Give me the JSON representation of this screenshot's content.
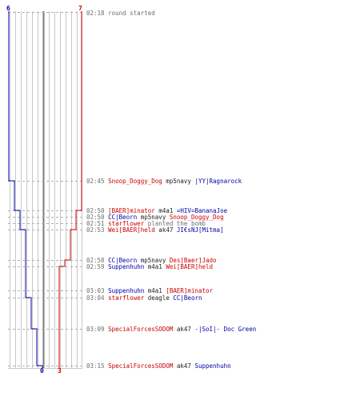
{
  "score_labels": {
    "blue_start": "6",
    "red_start": "7",
    "blue_end": "0",
    "red_end": "3"
  },
  "colors": {
    "team_red": "#cc0000",
    "team_blue": "#0000aa",
    "grid": "#c8c8c8",
    "gridline_dashed": "#b0b0b0",
    "center": "#7a7a7a",
    "text": "#222222"
  },
  "log": [
    {
      "time": "02:18",
      "parts": [
        {
          "text": " round started",
          "cls": "evt"
        }
      ]
    },
    {
      "time": "02:45",
      "parts": [
        {
          "text": " Snoop_Doggy_Dog",
          "cls": "red"
        },
        {
          "text": " mp5navy ",
          "cls": "plain"
        },
        {
          "text": "|YY|Ragnarock",
          "cls": "blue"
        }
      ]
    },
    {
      "time": "02:50",
      "parts": [
        {
          "text": " [BAER]minator",
          "cls": "red"
        },
        {
          "text": " m4a1 ",
          "cls": "plain"
        },
        {
          "text": "=HIV=BananaJoe",
          "cls": "blue"
        }
      ]
    },
    {
      "time": "02:50",
      "parts": [
        {
          "text": " CC|Beorn",
          "cls": "blue"
        },
        {
          "text": " mp5navy ",
          "cls": "plain"
        },
        {
          "text": "Snoop_Doggy_Dog",
          "cls": "red"
        }
      ]
    },
    {
      "time": "02:51",
      "parts": [
        {
          "text": " starflower",
          "cls": "red"
        },
        {
          "text": " planted the bomb",
          "cls": "evt"
        }
      ]
    },
    {
      "time": "02:53",
      "parts": [
        {
          "text": " Wei[BAER]held",
          "cls": "red"
        },
        {
          "text": " ak47 ",
          "cls": "plain"
        },
        {
          "text": "JI€sNJ[Mitma]",
          "cls": "blue"
        }
      ]
    },
    {
      "time": "02:58",
      "parts": [
        {
          "text": " CC|Beorn",
          "cls": "blue"
        },
        {
          "text": " mp5navy ",
          "cls": "plain"
        },
        {
          "text": "Des[Baer]Jado",
          "cls": "red"
        }
      ]
    },
    {
      "time": "02:59",
      "parts": [
        {
          "text": " Suppenhuhn",
          "cls": "blue"
        },
        {
          "text": " m4a1 ",
          "cls": "plain"
        },
        {
          "text": "Wei[BAER]held",
          "cls": "red"
        }
      ]
    },
    {
      "time": "03:03",
      "parts": [
        {
          "text": " Suppenhuhn",
          "cls": "blue"
        },
        {
          "text": " m4a1 ",
          "cls": "plain"
        },
        {
          "text": "[BAER]minator",
          "cls": "red"
        }
      ]
    },
    {
      "time": "03:04",
      "parts": [
        {
          "text": " starflower",
          "cls": "red"
        },
        {
          "text": " deagle ",
          "cls": "plain"
        },
        {
          "text": "CC|Beorn",
          "cls": "blue"
        }
      ]
    },
    {
      "time": "03:09",
      "parts": [
        {
          "text": " SpecialForcesSODOM",
          "cls": "red"
        },
        {
          "text": " ak47 ",
          "cls": "plain"
        },
        {
          "text": "-|SoI|- Doc Green",
          "cls": "blue"
        }
      ]
    },
    {
      "time": "03:15",
      "parts": [
        {
          "text": " SpecialForcesSODOM",
          "cls": "red"
        },
        {
          "text": " ak47 ",
          "cls": "plain"
        },
        {
          "text": "Suppenhuhn",
          "cls": "blue"
        }
      ]
    }
  ]
}
